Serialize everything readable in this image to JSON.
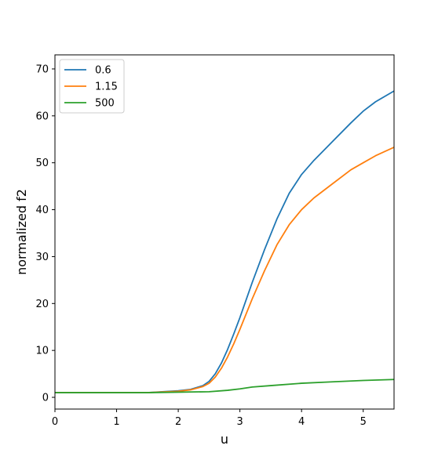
{
  "chart_data": {
    "type": "line",
    "title": "",
    "xlabel": "u",
    "ylabel": "normalized f2",
    "xlim": [
      0,
      5.5
    ],
    "ylim": [
      -2.5,
      73
    ],
    "xticks": [
      0,
      1,
      2,
      3,
      4,
      5
    ],
    "yticks": [
      0,
      10,
      20,
      30,
      40,
      50,
      60,
      70
    ],
    "grid": false,
    "legend_position": "upper-left",
    "series": [
      {
        "name": "0.6",
        "color": "#1f77b4",
        "x": [
          0,
          0.5,
          1.0,
          1.5,
          2.0,
          2.2,
          2.4,
          2.5,
          2.6,
          2.7,
          2.8,
          2.9,
          3.0,
          3.2,
          3.4,
          3.6,
          3.8,
          4.0,
          4.2,
          4.5,
          4.8,
          5.0,
          5.2,
          5.5
        ],
        "y": [
          1.0,
          1.0,
          1.0,
          1.0,
          1.4,
          1.7,
          2.5,
          3.4,
          5.0,
          7.3,
          10.2,
          13.5,
          17.0,
          24.5,
          31.5,
          38.0,
          43.5,
          47.5,
          50.5,
          54.5,
          58.5,
          61.0,
          63.0,
          65.3
        ]
      },
      {
        "name": "1.15",
        "color": "#ff7f0e",
        "x": [
          0,
          0.5,
          1.0,
          1.5,
          2.0,
          2.2,
          2.4,
          2.5,
          2.6,
          2.7,
          2.8,
          2.9,
          3.0,
          3.2,
          3.4,
          3.6,
          3.8,
          4.0,
          4.2,
          4.5,
          4.8,
          5.0,
          5.2,
          5.5
        ],
        "y": [
          1.0,
          1.0,
          1.0,
          1.0,
          1.3,
          1.6,
          2.3,
          3.0,
          4.3,
          6.2,
          8.6,
          11.4,
          14.5,
          21.0,
          27.0,
          32.5,
          36.8,
          40.0,
          42.5,
          45.5,
          48.5,
          50.0,
          51.5,
          53.3
        ]
      },
      {
        "name": "500",
        "color": "#2ca02c",
        "x": [
          0,
          0.5,
          1.0,
          1.5,
          2.0,
          2.5,
          2.8,
          3.0,
          3.2,
          3.5,
          4.0,
          4.5,
          5.0,
          5.5
        ],
        "y": [
          1.0,
          1.0,
          1.0,
          1.0,
          1.1,
          1.2,
          1.5,
          1.8,
          2.2,
          2.5,
          3.0,
          3.3,
          3.6,
          3.8
        ]
      }
    ]
  }
}
